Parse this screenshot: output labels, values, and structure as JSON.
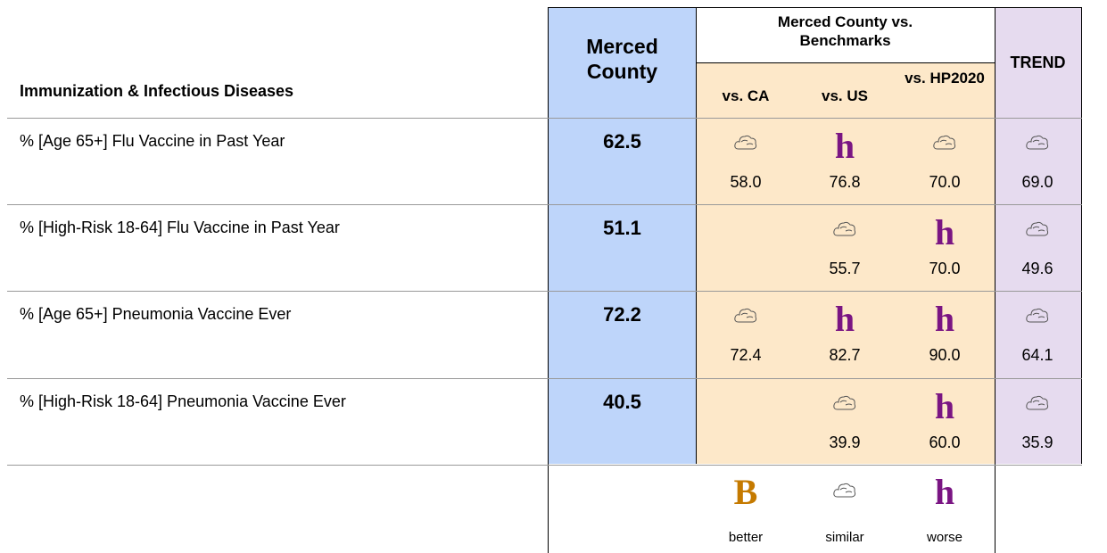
{
  "header": {
    "section_title": "Immunization & Infectious Diseases",
    "county": "Merced County",
    "benchmarks": "Merced County vs. Benchmarks",
    "columns": [
      "vs. CA",
      "vs. US",
      "vs. HP2020"
    ],
    "trend": "TREND"
  },
  "rows": [
    {
      "label": "% [Age 65+] Flu Vaccine in Past Year",
      "county": "62.5",
      "cells": [
        {
          "value": "58.0"
        },
        {
          "symbol": "h",
          "value": "76.8"
        },
        {
          "value": "70.0"
        },
        {
          "value": "69.0"
        }
      ]
    },
    {
      "label": "% [High-Risk 18-64] Flu Vaccine in Past Year",
      "county": "51.1",
      "cells": [
        null,
        {
          "value": "55.7"
        },
        {
          "symbol": "h",
          "value": "70.0"
        },
        {
          "value": "49.6"
        }
      ]
    },
    {
      "label": "% [Age 65+] Pneumonia Vaccine Ever",
      "county": "72.2",
      "cells": [
        {
          "value": "72.4"
        },
        {
          "symbol": "h",
          "value": "82.7"
        },
        {
          "symbol": "h",
          "value": "90.0"
        },
        {
          "value": "64.1"
        }
      ]
    },
    {
      "label": "% [High-Risk 18-64] Pneumonia Vaccine Ever",
      "county": "40.5",
      "cells": [
        null,
        {
          "value": "39.9"
        },
        {
          "symbol": "h",
          "value": "60.0"
        },
        {
          "value": "35.9"
        }
      ]
    }
  ],
  "legend": [
    {
      "symbol": "B",
      "label": "better"
    },
    {
      "label": "similar"
    },
    {
      "symbol": "h",
      "label": "worse"
    }
  ]
}
